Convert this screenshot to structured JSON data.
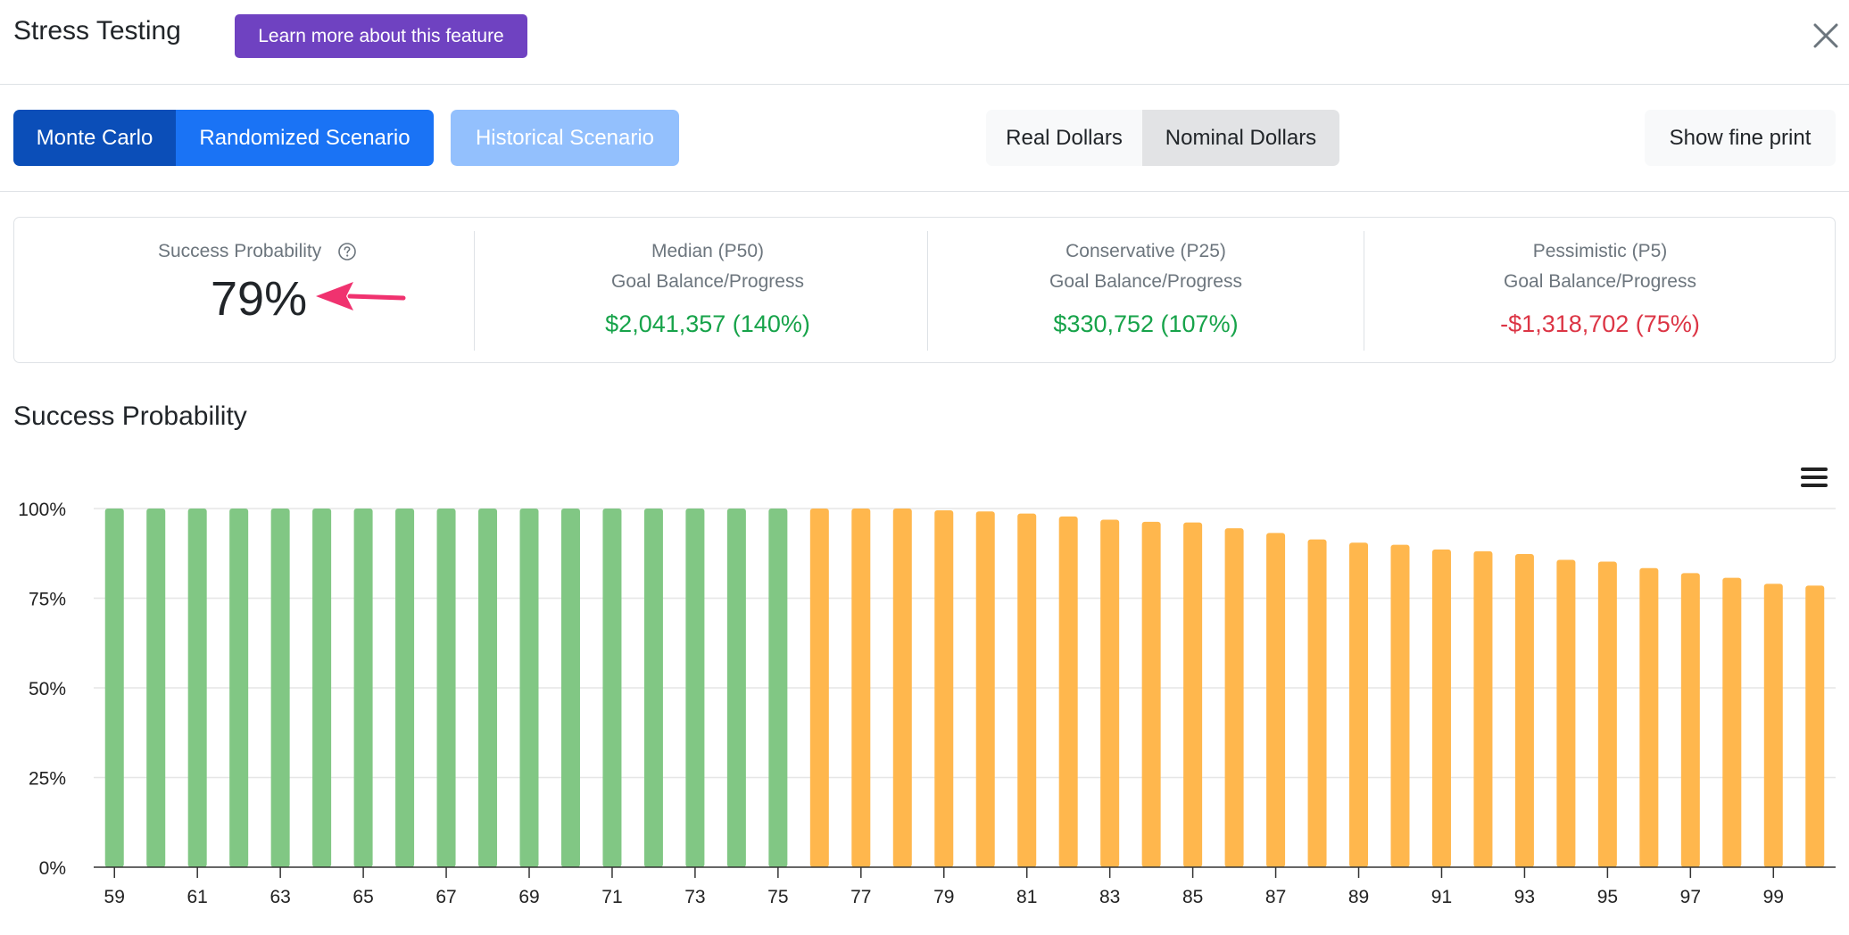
{
  "header": {
    "title": "Stress Testing",
    "learn_more_label": "Learn more about this feature"
  },
  "toolbar": {
    "monte_carlo_label": "Monte Carlo",
    "randomized_label": "Randomized Scenario",
    "historical_label": "Historical Scenario",
    "real_dollars_label": "Real Dollars",
    "nominal_dollars_label": "Nominal Dollars",
    "fine_print_label": "Show fine print"
  },
  "stats": {
    "success_label": "Success Probability",
    "success_value": "79%",
    "median_title": "Median (P50)",
    "median_sub": "Goal Balance/Progress",
    "median_value": "$2,041,357 (140%)",
    "conservative_title": "Conservative (P25)",
    "conservative_sub": "Goal Balance/Progress",
    "conservative_value": "$330,752 (107%)",
    "pessimistic_title": "Pessimistic (P5)",
    "pessimistic_sub": "Goal Balance/Progress",
    "pessimistic_value": "-$1,318,702 (75%)"
  },
  "colors": {
    "success_bar": "#81c784",
    "risk_bar": "#ffb74d",
    "positive": "#17a34a",
    "negative": "#dc3545",
    "primary": "#1a73f5",
    "purple": "#6f42c1",
    "arrow": "#f0326f"
  },
  "icons": {
    "close": "close-icon",
    "help": "question-circle-icon",
    "menu": "hamburger-menu-icon",
    "arrow": "left-arrow-icon"
  },
  "chart_data": {
    "type": "bar",
    "title": "Success Probability",
    "x": [
      59,
      60,
      61,
      62,
      63,
      64,
      65,
      66,
      67,
      68,
      69,
      70,
      71,
      72,
      73,
      74,
      75,
      76,
      77,
      78,
      79,
      80,
      81,
      82,
      83,
      84,
      85,
      86,
      87,
      88,
      89,
      90,
      91,
      92,
      93,
      94,
      95,
      96,
      97,
      98,
      99,
      100
    ],
    "values": [
      100,
      100,
      100,
      100,
      100,
      100,
      100,
      100,
      100,
      100,
      100,
      100,
      100,
      100,
      100,
      100,
      100,
      100,
      100,
      100,
      99.5,
      99.2,
      98.6,
      97.8,
      96.9,
      96.3,
      96.1,
      94.5,
      93.2,
      91.4,
      90.5,
      89.9,
      88.6,
      88.1,
      87.3,
      85.7,
      85.2,
      83.4,
      82.0,
      80.7,
      79.0,
      78.5
    ],
    "threshold_color_split": "green through age 75, orange from age 76",
    "ylim": [
      0,
      100
    ],
    "yticks": [
      "0%",
      "25%",
      "50%",
      "75%",
      "100%"
    ],
    "xticks": [
      "59",
      "61",
      "63",
      "65",
      "67",
      "69",
      "71",
      "73",
      "75",
      "77",
      "79",
      "81",
      "83",
      "85",
      "87",
      "89",
      "91",
      "93",
      "95",
      "97",
      "99"
    ],
    "grid": true,
    "legend": "none"
  }
}
